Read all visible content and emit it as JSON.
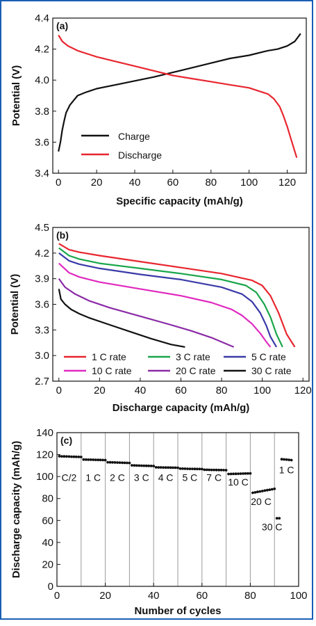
{
  "colors": {
    "frame": "#1a5fb4",
    "black": "#111111",
    "red": "#e8262f",
    "green": "#1aa64a",
    "blue": "#3a3aa8",
    "magenta": "#e029c0",
    "purple": "#8a2aa6",
    "divider": "#9a9a9a"
  },
  "chart_data": [
    {
      "type": "line",
      "panel": "(a)",
      "xlabel": "Specific capacity (mAh/g)",
      "ylabel": "Potential (V)",
      "xlim": [
        -3,
        130
      ],
      "ylim": [
        3.4,
        4.4
      ],
      "xticks": [
        "0",
        "20",
        "40",
        "60",
        "80",
        "100",
        "120"
      ],
      "yticks": [
        "3.4",
        "3.6",
        "3.8",
        "4.0",
        "4.2",
        "4.4"
      ],
      "legend": {
        "position": "bottom-left",
        "entries": [
          "Charge",
          "Discharge"
        ]
      },
      "series": [
        {
          "name": "Charge",
          "color": "black",
          "x": [
            0,
            1,
            2,
            3,
            4,
            6,
            8,
            10,
            14,
            20,
            30,
            40,
            50,
            60,
            70,
            80,
            90,
            100,
            110,
            115,
            120,
            124,
            127
          ],
          "y": [
            3.54,
            3.6,
            3.68,
            3.74,
            3.79,
            3.84,
            3.87,
            3.9,
            3.92,
            3.945,
            3.97,
            3.995,
            4.02,
            4.05,
            4.08,
            4.11,
            4.14,
            4.16,
            4.19,
            4.2,
            4.22,
            4.25,
            4.3
          ]
        },
        {
          "name": "Discharge",
          "color": "red",
          "x": [
            0,
            2,
            5,
            10,
            20,
            30,
            40,
            50,
            60,
            70,
            80,
            90,
            100,
            105,
            110,
            113,
            116,
            118,
            120,
            122,
            124,
            125
          ],
          "y": [
            4.29,
            4.25,
            4.22,
            4.19,
            4.15,
            4.12,
            4.09,
            4.06,
            4.03,
            4.01,
            3.99,
            3.97,
            3.95,
            3.93,
            3.91,
            3.88,
            3.83,
            3.77,
            3.7,
            3.62,
            3.54,
            3.5
          ]
        }
      ]
    },
    {
      "type": "line",
      "panel": "(b)",
      "xlabel": "Discharge capacity (mAh/g)",
      "ylabel": "Potential (V)",
      "xlim": [
        -3,
        123
      ],
      "ylim": [
        2.7,
        4.5
      ],
      "xticks": [
        "0",
        "20",
        "40",
        "60",
        "80",
        "100",
        "120"
      ],
      "yticks": [
        "2.7",
        "3.0",
        "3.3",
        "3.6",
        "3.9",
        "4.2",
        "4.5"
      ],
      "legend": {
        "position": "bottom",
        "entries": [
          "1 C rate",
          "3 C rate",
          "5 C rate",
          "10 C rate",
          "20 C rate",
          "30 C rate"
        ]
      },
      "series": [
        {
          "name": "1 C rate",
          "color": "red",
          "x": [
            0,
            5,
            10,
            20,
            40,
            60,
            80,
            95,
            100,
            104,
            108,
            112,
            116
          ],
          "y": [
            4.31,
            4.24,
            4.21,
            4.17,
            4.1,
            4.03,
            3.96,
            3.88,
            3.82,
            3.7,
            3.5,
            3.25,
            3.1
          ]
        },
        {
          "name": "3 C rate",
          "color": "green",
          "x": [
            0,
            5,
            10,
            20,
            40,
            60,
            80,
            92,
            97,
            101,
            104,
            107,
            110
          ],
          "y": [
            4.26,
            4.17,
            4.13,
            4.08,
            4.02,
            3.96,
            3.89,
            3.82,
            3.74,
            3.6,
            3.45,
            3.25,
            3.1
          ]
        },
        {
          "name": "5 C rate",
          "color": "blue",
          "x": [
            0,
            5,
            10,
            20,
            40,
            60,
            80,
            90,
            95,
            99,
            102,
            104,
            107
          ],
          "y": [
            4.2,
            4.11,
            4.07,
            4.02,
            3.95,
            3.89,
            3.8,
            3.72,
            3.63,
            3.5,
            3.35,
            3.22,
            3.1
          ]
        },
        {
          "name": "10 C rate",
          "color": "magenta",
          "x": [
            0,
            5,
            10,
            20,
            40,
            60,
            75,
            85,
            90,
            95,
            99,
            102,
            104
          ],
          "y": [
            4.08,
            3.97,
            3.92,
            3.86,
            3.78,
            3.7,
            3.62,
            3.54,
            3.47,
            3.37,
            3.26,
            3.16,
            3.1
          ]
        },
        {
          "name": "20 C rate",
          "color": "purple",
          "x": [
            0,
            3,
            8,
            15,
            25,
            40,
            55,
            65,
            75,
            82,
            86
          ],
          "y": [
            3.9,
            3.8,
            3.72,
            3.64,
            3.56,
            3.46,
            3.36,
            3.29,
            3.21,
            3.14,
            3.1
          ]
        },
        {
          "name": "30 C rate",
          "color": "black",
          "x": [
            0,
            1,
            3,
            6,
            10,
            15,
            25,
            35,
            45,
            55,
            62
          ],
          "y": [
            3.78,
            3.66,
            3.6,
            3.54,
            3.49,
            3.44,
            3.36,
            3.28,
            3.2,
            3.13,
            3.1
          ]
        }
      ]
    },
    {
      "type": "scatter",
      "panel": "(c)",
      "xlabel": "Number of cycles",
      "ylabel": "Discharge capacity (mAh/g)",
      "xlim": [
        0,
        100
      ],
      "ylim": [
        0,
        140
      ],
      "xticks": [
        "0",
        "20",
        "40",
        "60",
        "80",
        "100"
      ],
      "yticks": [
        "0",
        "20",
        "40",
        "60",
        "80",
        "100",
        "120",
        "140"
      ],
      "dividers": [
        10,
        20,
        30,
        40,
        50,
        60,
        70,
        80,
        90
      ],
      "segments": [
        {
          "label": "C/2",
          "start": 1,
          "end": 10,
          "v0": 118.5,
          "v1": 117.8
        },
        {
          "label": "1 C",
          "start": 11,
          "end": 20,
          "v0": 115.5,
          "v1": 115.0
        },
        {
          "label": "2 C",
          "start": 21,
          "end": 30,
          "v0": 113.0,
          "v1": 112.4
        },
        {
          "label": "3 C",
          "start": 31,
          "end": 40,
          "v0": 110.2,
          "v1": 109.6
        },
        {
          "label": "4 C",
          "start": 41,
          "end": 50,
          "v0": 108.4,
          "v1": 108.0
        },
        {
          "label": "5 C",
          "start": 51,
          "end": 60,
          "v0": 107.2,
          "v1": 106.8
        },
        {
          "label": "7 C",
          "start": 61,
          "end": 70,
          "v0": 106.2,
          "v1": 105.8
        },
        {
          "label": "10 C",
          "start": 71,
          "end": 80,
          "v0": 102.3,
          "v1": 102.9
        },
        {
          "label": "20 C",
          "start": 81,
          "end": 90,
          "v0": 85.2,
          "v1": 88.8
        },
        {
          "label": "30 C",
          "start": 91,
          "end": 92,
          "v0": 62.0,
          "v1": 62.0
        },
        {
          "label": "1 C",
          "start": 93,
          "end": 97,
          "v0": 115.8,
          "v1": 115.0
        }
      ]
    }
  ]
}
